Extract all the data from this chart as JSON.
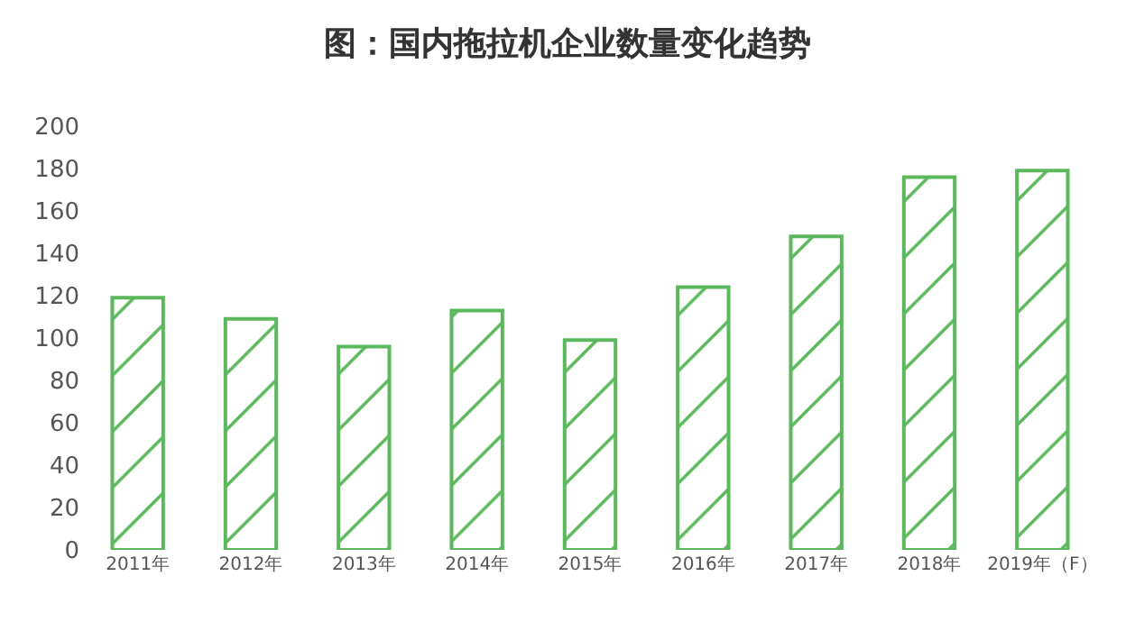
{
  "chart_data": {
    "type": "bar",
    "title": "图：国内拖拉机企业数量变化趋势",
    "categories": [
      "2011年",
      "2012年",
      "2013年",
      "2014年",
      "2015年",
      "2016年",
      "2017年",
      "2018年",
      "2019年（F）"
    ],
    "values": [
      119,
      109,
      96,
      113,
      99,
      124,
      148,
      176,
      179
    ],
    "color": "#5cb85c",
    "ylim": [
      0,
      200
    ],
    "yticks": [
      0,
      20,
      40,
      60,
      80,
      100,
      120,
      140,
      160,
      180,
      200
    ],
    "grid": false
  }
}
